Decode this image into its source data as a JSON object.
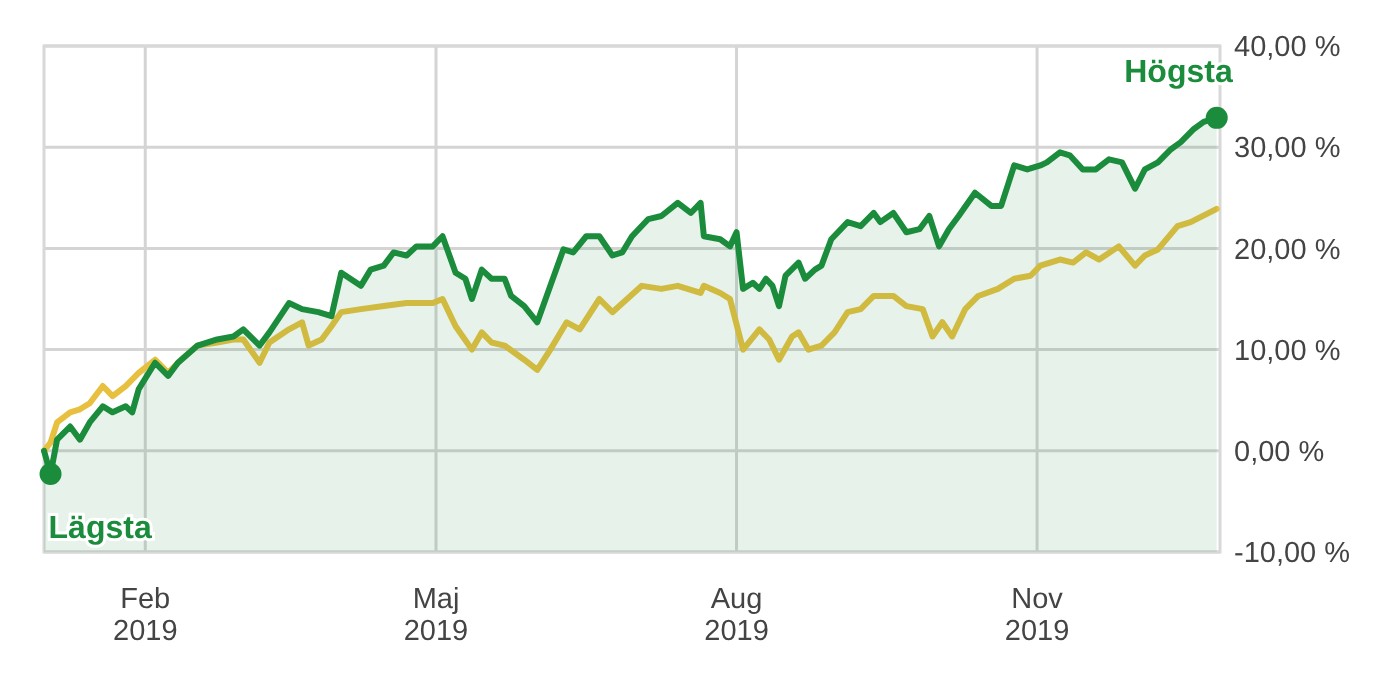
{
  "chart_data": {
    "type": "line",
    "xlim": [
      "2019-01-01",
      "2019-12-27"
    ],
    "ylim": [
      -10,
      40
    ],
    "xticks": [
      {
        "value": "2019-02-01",
        "label": "Feb 2019"
      },
      {
        "value": "2019-05-01",
        "label": "Maj 2019"
      },
      {
        "value": "2019-08-01",
        "label": "Aug 2019"
      },
      {
        "value": "2019-11-01",
        "label": "Nov 2019"
      }
    ],
    "yticks": [
      {
        "value": -10,
        "label": "-10,00 %"
      },
      {
        "value": 0,
        "label": "0,00 %"
      },
      {
        "value": 10,
        "label": "10,00 %"
      },
      {
        "value": 20,
        "label": "20,00 %"
      },
      {
        "value": 30,
        "label": "30,00 %"
      },
      {
        "value": 40,
        "label": "40,00 %"
      }
    ],
    "grid": true,
    "annotations": [
      {
        "text": "Lägsta",
        "x": "2019-01-03",
        "y": -2.3
      },
      {
        "text": "Högsta",
        "x": "2019-12-26",
        "y": 32.9
      }
    ],
    "series": [
      {
        "color": "#e8c040",
        "x": [
          "2019-01-01",
          "2019-01-03",
          "2019-01-05",
          "2019-01-09",
          "2019-01-12",
          "2019-01-15",
          "2019-01-19",
          "2019-01-22",
          "2019-01-26",
          "2019-01-30",
          "2019-02-04",
          "2019-02-08",
          "2019-02-11",
          "2019-02-17",
          "2019-02-23",
          "2019-02-28",
          "2019-03-03",
          "2019-03-08",
          "2019-03-11",
          "2019-03-17",
          "2019-03-21",
          "2019-03-23",
          "2019-03-27",
          "2019-03-30",
          "2019-04-02",
          "2019-04-08",
          "2019-04-15",
          "2019-04-22",
          "2019-04-30",
          "2019-05-03",
          "2019-05-07",
          "2019-05-12",
          "2019-05-15",
          "2019-05-18",
          "2019-05-22",
          "2019-05-28",
          "2019-06-01",
          "2019-06-05",
          "2019-06-10",
          "2019-06-14",
          "2019-06-20",
          "2019-06-24",
          "2019-07-03",
          "2019-07-09",
          "2019-07-14",
          "2019-07-21",
          "2019-07-22",
          "2019-07-27",
          "2019-07-30",
          "2019-08-03",
          "2019-08-08",
          "2019-08-11",
          "2019-08-14",
          "2019-08-18",
          "2019-08-20",
          "2019-08-23",
          "2019-08-27",
          "2019-08-31",
          "2019-09-04",
          "2019-09-08",
          "2019-09-12",
          "2019-09-18",
          "2019-09-22",
          "2019-09-27",
          "2019-09-30",
          "2019-10-03",
          "2019-10-06",
          "2019-10-10",
          "2019-10-14",
          "2019-10-20",
          "2019-10-25",
          "2019-10-30",
          "2019-11-02",
          "2019-11-08",
          "2019-11-12",
          "2019-11-16",
          "2019-11-20",
          "2019-11-26",
          "2019-12-01",
          "2019-12-04",
          "2019-12-08",
          "2019-12-14",
          "2019-12-18",
          "2019-12-26"
        ],
        "values": [
          0,
          0.8,
          2.8,
          3.8,
          4.1,
          4.7,
          6.4,
          5.4,
          6.4,
          7.7,
          9,
          7.7,
          8.7,
          10.4,
          10.7,
          11,
          11,
          8.7,
          10.7,
          12,
          12.7,
          10.4,
          11,
          12.3,
          13.7,
          14,
          14.3,
          14.6,
          14.6,
          15,
          12.3,
          10,
          11.7,
          10.7,
          10.4,
          9,
          8,
          10,
          12.7,
          12,
          15,
          13.7,
          16.3,
          16,
          16.3,
          15.6,
          16.3,
          15.6,
          15,
          10,
          12,
          11,
          9,
          11.3,
          11.7,
          10,
          10.4,
          11.7,
          13.7,
          14,
          15.3,
          15.3,
          14.3,
          14,
          11.3,
          12.7,
          11.3,
          14,
          15.3,
          16,
          17,
          17.3,
          18.3,
          18.9,
          18.6,
          19.6,
          18.9,
          20.2,
          18.3,
          19.3,
          19.9,
          22.2,
          22.6,
          23.9
        ]
      },
      {
        "color": "#1a8c3c",
        "lower": [
          -10,
          -10,
          -10,
          -10,
          -10,
          -10,
          -10,
          -10,
          -10,
          -10,
          -10,
          -10,
          -10,
          -10,
          -10,
          -10,
          -10,
          -10,
          -10,
          -10,
          -10,
          -10,
          -10,
          -10,
          -10,
          -10,
          -10,
          -10,
          -10,
          -10,
          -10,
          -10,
          -10,
          -10,
          -10,
          -10,
          -10,
          -10,
          -10,
          -10,
          -10,
          -10,
          -10,
          -10,
          -10,
          -10,
          -10,
          -10,
          -10,
          -10,
          -10,
          -10,
          -10,
          -10,
          -10,
          -10,
          -10,
          -10,
          -10,
          -10,
          -10,
          -10,
          -10,
          -10,
          -10,
          -10,
          -10,
          -10,
          -10,
          -10,
          -10,
          -10,
          -10,
          -10,
          -10,
          -10,
          -10,
          -10,
          -10,
          -10,
          -10,
          -10,
          -10,
          -10,
          -10,
          -10,
          -10,
          -10,
          -10,
          -10,
          -10,
          -10,
          -10,
          -10,
          -10,
          -10,
          -10,
          -10,
          -10,
          -10,
          -10,
          -10,
          -10
        ],
        "upper": [
          0,
          -2.3,
          1.1,
          2.4,
          1.1,
          2.8,
          4.4,
          3.8,
          4.4,
          3.8,
          6.1,
          8.7,
          7.4,
          8.7,
          10.4,
          11,
          11.3,
          12,
          10.4,
          11.7,
          14.6,
          14,
          13.7,
          13.3,
          17.6,
          16.3,
          17.9,
          18.3,
          19.6,
          19.3,
          20.2,
          20.2,
          21.2,
          17.6,
          17,
          15,
          17.9,
          17,
          17,
          15.3,
          14.3,
          12.7,
          16.3,
          19.9,
          19.6,
          21.2,
          21.2,
          19.3,
          19.6,
          21.2,
          22.9,
          23.2,
          24.5,
          23.5,
          24.5,
          21.2,
          20.9,
          20.2,
          21.6,
          16,
          16.6,
          16,
          17,
          16.3,
          14.3,
          17.3,
          18.6,
          17,
          17.9,
          18.3,
          20.9,
          22.6,
          22.2,
          23.5,
          22.6,
          23.5,
          21.6,
          21.9,
          23.2,
          20.2,
          21.9,
          23.2,
          25.5,
          24.2,
          24.2,
          28.2,
          27.8,
          28.2,
          28.5,
          29.5,
          29.2,
          27.8,
          27.8,
          28.8,
          28.5,
          25.9,
          27.8,
          28.5,
          29.8,
          30.5,
          31.8,
          32.5,
          32.9
        ],
        "x": [
          "2019-01-01",
          "2019-01-03",
          "2019-01-05",
          "2019-01-09",
          "2019-01-12",
          "2019-01-15",
          "2019-01-19",
          "2019-01-22",
          "2019-01-26",
          "2019-01-28",
          "2019-01-30",
          "2019-02-04",
          "2019-02-08",
          "2019-02-11",
          "2019-02-17",
          "2019-02-23",
          "2019-02-28",
          "2019-03-03",
          "2019-03-08",
          "2019-03-11",
          "2019-03-17",
          "2019-03-21",
          "2019-03-26",
          "2019-03-30",
          "2019-04-02",
          "2019-04-08",
          "2019-04-11",
          "2019-04-15",
          "2019-04-18",
          "2019-04-22",
          "2019-04-25",
          "2019-04-30",
          "2019-05-03",
          "2019-05-07",
          "2019-05-10",
          "2019-05-12",
          "2019-05-15",
          "2019-05-18",
          "2019-05-22",
          "2019-05-24",
          "2019-05-28",
          "2019-06-01",
          "2019-06-05",
          "2019-06-09",
          "2019-06-12",
          "2019-06-16",
          "2019-06-20",
          "2019-06-24",
          "2019-06-27",
          "2019-06-30",
          "2019-07-05",
          "2019-07-09",
          "2019-07-14",
          "2019-07-18",
          "2019-07-21",
          "2019-07-22",
          "2019-07-27",
          "2019-07-30",
          "2019-08-01",
          "2019-08-03",
          "2019-08-06",
          "2019-08-08",
          "2019-08-10",
          "2019-08-12",
          "2019-08-14",
          "2019-08-16",
          "2019-08-20",
          "2019-08-22",
          "2019-08-25",
          "2019-08-27",
          "2019-08-30",
          "2019-09-04",
          "2019-09-08",
          "2019-09-12",
          "2019-09-14",
          "2019-09-18",
          "2019-09-22",
          "2019-09-26",
          "2019-09-29",
          "2019-10-02",
          "2019-10-05",
          "2019-10-08",
          "2019-10-13",
          "2019-10-18",
          "2019-10-21",
          "2019-10-25",
          "2019-10-29",
          "2019-11-02",
          "2019-11-04",
          "2019-11-08",
          "2019-11-11",
          "2019-11-15",
          "2019-11-19",
          "2019-11-23",
          "2019-11-27",
          "2019-12-01",
          "2019-12-04",
          "2019-12-08",
          "2019-12-12",
          "2019-12-15",
          "2019-12-19",
          "2019-12-22",
          "2019-12-26"
        ],
        "values": [
          0,
          -2.3,
          1.1,
          2.4,
          1.1,
          2.8,
          4.4,
          3.8,
          4.4,
          3.8,
          6.1,
          8.7,
          7.4,
          8.7,
          10.4,
          11,
          11.3,
          12,
          10.4,
          11.7,
          14.6,
          14,
          13.7,
          13.3,
          17.6,
          16.3,
          17.9,
          18.3,
          19.6,
          19.3,
          20.2,
          20.2,
          21.2,
          17.6,
          17,
          15,
          17.9,
          17,
          17,
          15.3,
          14.3,
          12.7,
          16.3,
          19.9,
          19.6,
          21.2,
          21.2,
          19.3,
          19.6,
          21.2,
          22.9,
          23.2,
          24.5,
          23.5,
          24.5,
          21.2,
          20.9,
          20.2,
          21.6,
          16,
          16.6,
          16,
          17,
          16.3,
          14.3,
          17.3,
          18.6,
          17,
          17.9,
          18.3,
          20.9,
          22.6,
          22.2,
          23.5,
          22.6,
          23.5,
          21.6,
          21.9,
          23.2,
          20.2,
          21.9,
          23.2,
          25.5,
          24.2,
          24.2,
          28.2,
          27.8,
          28.2,
          28.5,
          29.5,
          29.2,
          27.8,
          27.8,
          28.8,
          28.5,
          25.9,
          27.8,
          28.5,
          29.8,
          30.5,
          31.8,
          32.5,
          32.9
        ]
      }
    ]
  }
}
